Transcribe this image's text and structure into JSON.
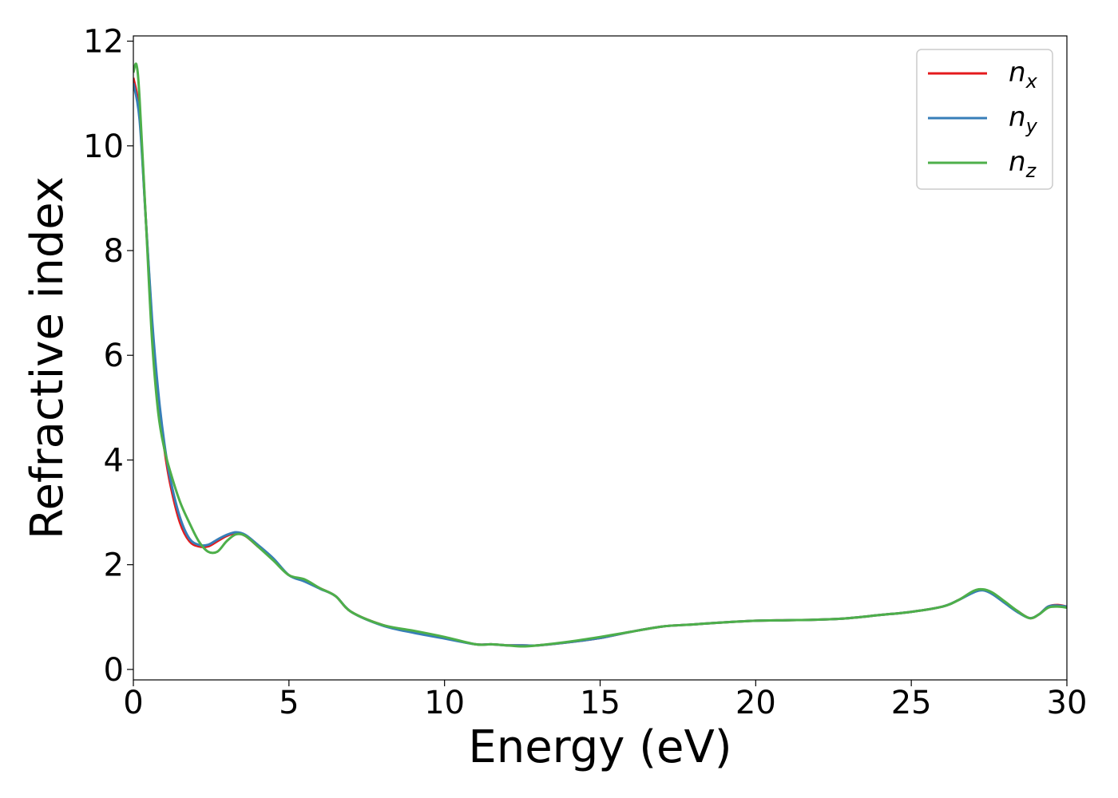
{
  "chart_data": {
    "type": "line",
    "xlabel": "Energy (eV)",
    "ylabel": "Refractive index",
    "xlim": [
      0,
      30
    ],
    "ylim": [
      -0.2,
      12.1
    ],
    "xticks": [
      0,
      5,
      10,
      15,
      20,
      25,
      30
    ],
    "yticks": [
      0,
      2,
      4,
      6,
      8,
      10,
      12
    ],
    "grid": false,
    "legend_position": "top-right",
    "series": [
      {
        "name": "n",
        "subscript": "x",
        "color": "#e41a1c",
        "x": [
          0,
          0.2,
          0.4,
          0.6,
          0.8,
          1.0,
          1.2,
          1.5,
          1.8,
          2.1,
          2.4,
          2.7,
          3.0,
          3.3,
          3.6,
          4.0,
          4.5,
          5.0,
          5.5,
          6.0,
          6.5,
          7.0,
          8.0,
          9.0,
          10.0,
          11.0,
          11.5,
          12.0,
          12.5,
          13.0,
          14.0,
          15.0,
          16.0,
          17.0,
          18.0,
          19.0,
          20.0,
          21.0,
          22.0,
          23.0,
          24.0,
          25.0,
          26.0,
          26.5,
          27.0,
          27.3,
          27.6,
          28.0,
          28.4,
          28.8,
          29.1,
          29.4,
          29.7,
          30.0
        ],
        "y": [
          11.3,
          10.6,
          8.6,
          6.6,
          5.2,
          4.2,
          3.5,
          2.8,
          2.45,
          2.35,
          2.35,
          2.45,
          2.55,
          2.6,
          2.55,
          2.35,
          2.1,
          1.8,
          1.7,
          1.55,
          1.4,
          1.1,
          0.85,
          0.72,
          0.6,
          0.48,
          0.48,
          0.46,
          0.46,
          0.46,
          0.52,
          0.6,
          0.72,
          0.82,
          0.86,
          0.9,
          0.93,
          0.94,
          0.95,
          0.98,
          1.04,
          1.1,
          1.2,
          1.32,
          1.48,
          1.52,
          1.45,
          1.28,
          1.12,
          0.98,
          1.05,
          1.2,
          1.23,
          1.2
        ]
      },
      {
        "name": "n",
        "subscript": "y",
        "color": "#377eb8",
        "x": [
          0,
          0.2,
          0.4,
          0.6,
          0.8,
          1.0,
          1.2,
          1.5,
          1.8,
          2.1,
          2.4,
          2.7,
          3.0,
          3.3,
          3.6,
          4.0,
          4.5,
          5.0,
          5.5,
          6.0,
          6.5,
          7.0,
          8.0,
          9.0,
          10.0,
          11.0,
          11.5,
          12.0,
          12.5,
          13.0,
          14.0,
          15.0,
          16.0,
          17.0,
          18.0,
          19.0,
          20.0,
          21.0,
          22.0,
          23.0,
          24.0,
          25.0,
          26.0,
          26.5,
          27.0,
          27.3,
          27.6,
          28.0,
          28.4,
          28.8,
          29.1,
          29.4,
          29.7,
          30.0
        ],
        "y": [
          11.2,
          10.5,
          8.6,
          6.7,
          5.3,
          4.3,
          3.6,
          2.9,
          2.5,
          2.38,
          2.38,
          2.48,
          2.57,
          2.62,
          2.57,
          2.38,
          2.12,
          1.8,
          1.68,
          1.54,
          1.4,
          1.1,
          0.84,
          0.7,
          0.59,
          0.48,
          0.48,
          0.46,
          0.46,
          0.46,
          0.52,
          0.6,
          0.72,
          0.82,
          0.86,
          0.9,
          0.93,
          0.94,
          0.95,
          0.98,
          1.04,
          1.1,
          1.2,
          1.32,
          1.47,
          1.51,
          1.44,
          1.27,
          1.1,
          0.98,
          1.05,
          1.2,
          1.22,
          1.2
        ]
      },
      {
        "name": "n",
        "subscript": "z",
        "color": "#4daf4a",
        "x": [
          0,
          0.1,
          0.2,
          0.4,
          0.6,
          0.8,
          1.0,
          1.2,
          1.5,
          1.8,
          2.1,
          2.4,
          2.7,
          3.0,
          3.3,
          3.6,
          4.0,
          4.5,
          5.0,
          5.5,
          6.0,
          6.5,
          7.0,
          8.0,
          9.0,
          10.0,
          11.0,
          11.5,
          12.0,
          12.5,
          13.0,
          14.0,
          15.0,
          16.0,
          17.0,
          18.0,
          19.0,
          20.0,
          21.0,
          22.0,
          23.0,
          24.0,
          25.0,
          26.0,
          26.5,
          27.0,
          27.3,
          27.6,
          28.0,
          28.4,
          28.8,
          29.1,
          29.4,
          29.7,
          30.0
        ],
        "y": [
          11.4,
          11.55,
          10.9,
          8.6,
          6.3,
          4.9,
          4.2,
          3.75,
          3.2,
          2.8,
          2.45,
          2.25,
          2.25,
          2.45,
          2.58,
          2.55,
          2.35,
          2.08,
          1.8,
          1.72,
          1.55,
          1.4,
          1.1,
          0.85,
          0.74,
          0.62,
          0.48,
          0.48,
          0.46,
          0.44,
          0.46,
          0.53,
          0.62,
          0.72,
          0.82,
          0.86,
          0.9,
          0.93,
          0.94,
          0.95,
          0.98,
          1.04,
          1.1,
          1.2,
          1.32,
          1.5,
          1.53,
          1.47,
          1.3,
          1.12,
          0.98,
          1.05,
          1.18,
          1.2,
          1.18
        ]
      }
    ]
  }
}
